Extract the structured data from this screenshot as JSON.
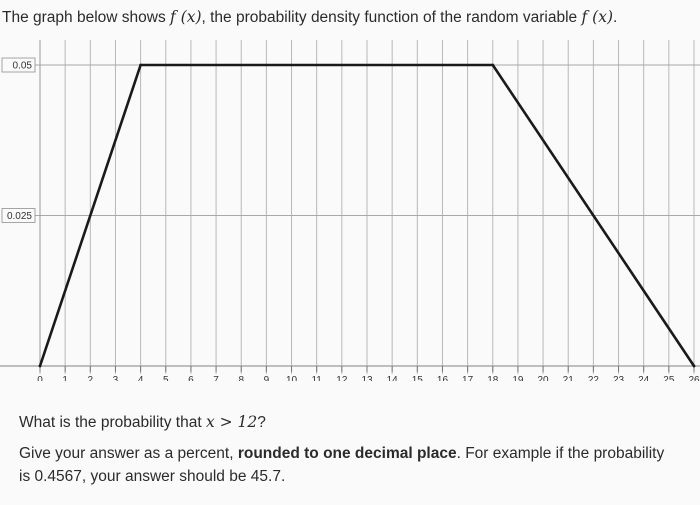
{
  "header": {
    "intro_prefix": "The graph below shows ",
    "intro_func": "f (x)",
    "intro_middle": ", the probability density function of the random variable ",
    "intro_var": "f (x)",
    "intro_suffix": "."
  },
  "question": {
    "prefix": "What is the probability that ",
    "condition": "x > 12",
    "suffix": "?"
  },
  "instructions": {
    "part1": "Give your answer as a percent, ",
    "emphasis": "rounded to one decimal place",
    "part2": ". For example if the probability is 0.4567, your answer should be 45.7."
  },
  "chart_data": {
    "type": "line",
    "x_ticks": [
      "0",
      "1",
      "2",
      "3",
      "4",
      "5",
      "6",
      "7",
      "8",
      "9",
      "10",
      "11",
      "12",
      "13",
      "14",
      "15",
      "16",
      "17",
      "18",
      "19",
      "20",
      "21",
      "22",
      "23",
      "24",
      "25",
      "26"
    ],
    "y_ticks": [
      {
        "value": 0.05,
        "label": "0.05"
      },
      {
        "value": 0.025,
        "label": "0.025"
      }
    ],
    "series": [
      {
        "x": [
          0,
          4,
          18,
          26
        ],
        "y": [
          0,
          0.05,
          0.05,
          0
        ]
      }
    ],
    "xlim": [
      0,
      26
    ],
    "ylim": [
      0,
      0.05
    ],
    "grid": true,
    "line_color": "#1a1a1a"
  }
}
